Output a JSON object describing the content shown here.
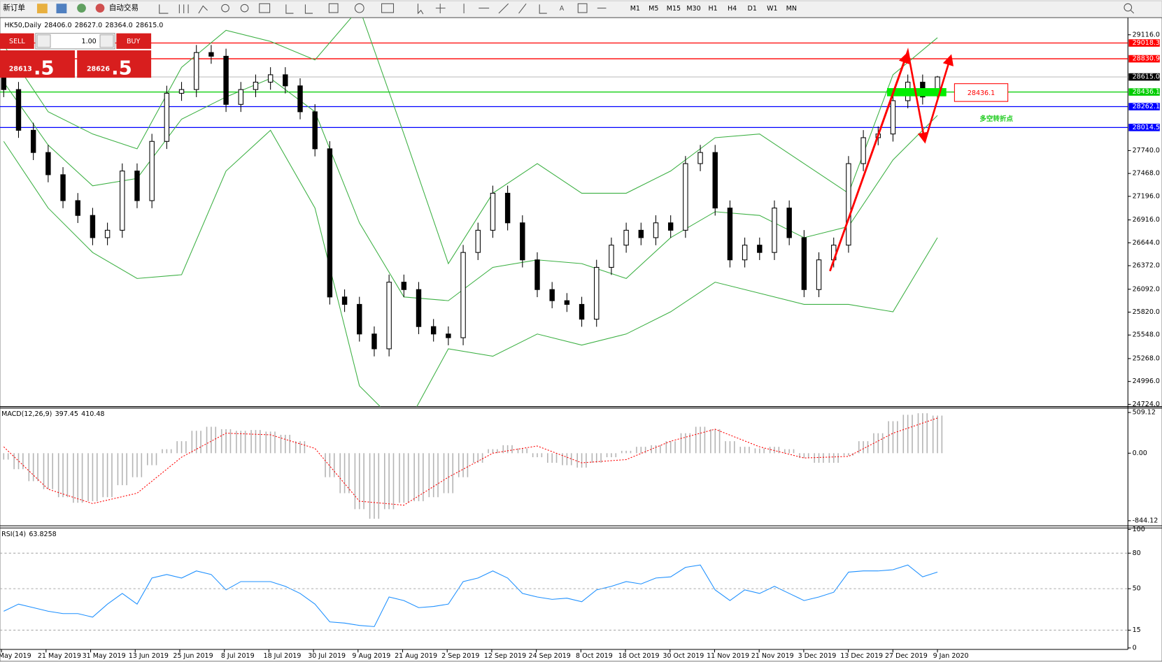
{
  "toolbar": {
    "new_order": "新订单",
    "auto_trade": "自动交易",
    "timeframes": [
      "M1",
      "M5",
      "M15",
      "M30",
      "H1",
      "H4",
      "D1",
      "W1",
      "MN"
    ]
  },
  "trade_panel": {
    "sell": "SELL",
    "buy": "BUY",
    "lots": "1.00",
    "sell_price": "28613",
    "sell_pips": ".5",
    "buy_price": "28626",
    "buy_pips": ".5"
  },
  "chart_data": [
    {
      "type": "candlestick",
      "title": "HK50,Daily",
      "header_values": [
        {
          "value": 28406,
          "label": "28406.0"
        },
        {
          "value": 28627,
          "label": "28627.0"
        },
        {
          "value": 28364,
          "label": "28364.0"
        },
        {
          "value": 28615,
          "label": "28615.0"
        }
      ],
      "open": [
        28700,
        28465,
        27981,
        27717,
        27453,
        27145,
        26969,
        26705,
        26793,
        27497,
        27145,
        27849,
        28421,
        28465,
        28905,
        28861,
        28289,
        28465,
        28553,
        28641,
        28509,
        28201,
        27761,
        26000,
        25912,
        25560,
        25384,
        26176,
        26088,
        25648,
        25560,
        25516,
        26529,
        26793,
        27233,
        26881,
        26441,
        26088,
        25956,
        25912,
        25736,
        26352,
        26616,
        26793,
        26705,
        26881,
        26793,
        27585,
        27717,
        27057,
        26441,
        26616,
        26529,
        27057,
        26705,
        26088,
        26441,
        26616,
        27585,
        27893,
        27937,
        28333,
        28553,
        28406
      ],
      "high": [
        28790,
        28555,
        28071,
        27807,
        27543,
        27235,
        27059,
        26883,
        27587,
        27587,
        27939,
        28511,
        28555,
        28995,
        28995,
        28951,
        28555,
        28643,
        28731,
        28731,
        28599,
        28291,
        27851,
        26090,
        26002,
        25650,
        26266,
        26266,
        26178,
        25738,
        25650,
        26619,
        26883,
        27323,
        27323,
        26971,
        26531,
        26178,
        26046,
        26002,
        26442,
        26706,
        26883,
        26883,
        26971,
        26971,
        27675,
        27807,
        27807,
        27147,
        26706,
        26706,
        27147,
        27147,
        26795,
        26531,
        26706,
        27675,
        27983,
        28027,
        28423,
        28643,
        28643,
        28627
      ],
      "low": [
        28375,
        27891,
        27627,
        27363,
        27055,
        26879,
        26615,
        26615,
        26703,
        27055,
        27055,
        27759,
        28331,
        28375,
        28771,
        28199,
        28199,
        28375,
        28463,
        28419,
        28111,
        27671,
        25910,
        25822,
        25470,
        25294,
        25294,
        25998,
        25558,
        25470,
        25426,
        25426,
        26439,
        26703,
        26791,
        26351,
        25998,
        25866,
        25822,
        25646,
        25646,
        26262,
        26526,
        26615,
        26615,
        26703,
        26703,
        27495,
        26967,
        26351,
        26351,
        26439,
        26439,
        26615,
        25998,
        25998,
        26351,
        26526,
        27495,
        27803,
        27847,
        28243,
        28287,
        28364
      ],
      "close": [
        28465,
        27981,
        27717,
        27453,
        27145,
        26969,
        26705,
        26793,
        27497,
        27145,
        27849,
        28421,
        28465,
        28905,
        28861,
        28289,
        28465,
        28553,
        28641,
        28509,
        28201,
        27761,
        26000,
        25912,
        25560,
        25384,
        26176,
        26088,
        25648,
        25560,
        25516,
        26529,
        26793,
        27233,
        26881,
        26441,
        26088,
        25956,
        25912,
        25736,
        26352,
        26616,
        26793,
        26705,
        26881,
        26793,
        27585,
        27717,
        27057,
        26441,
        26616,
        26529,
        27057,
        26705,
        26088,
        26441,
        26616,
        27585,
        27893,
        27937,
        28333,
        28553,
        28377,
        28615
      ],
      "bollinger": {
        "x": [
          0,
          3,
          6,
          9,
          12,
          15,
          18,
          21,
          24,
          27,
          30,
          33,
          36,
          39,
          42,
          45,
          48,
          51,
          54,
          57,
          60,
          63
        ],
        "color": "#3cb043",
        "upper": [
          28993,
          28201,
          27937,
          27761,
          28729,
          29169,
          29037,
          28817,
          29433,
          27937,
          26396,
          27233,
          27585,
          27233,
          27233,
          27497,
          27893,
          27937,
          27585,
          27233,
          28641,
          29081
        ],
        "middle": [
          28553,
          27805,
          27321,
          27409,
          28113,
          28377,
          28597,
          28201,
          26881,
          26000,
          25956,
          26352,
          26441,
          26396,
          26220,
          26705,
          27013,
          26969,
          26705,
          26837,
          27629,
          28157
        ],
        "lower": [
          27849,
          27057,
          26529,
          26220,
          26264,
          27497,
          27981,
          27057,
          24944,
          24416,
          25384,
          25296,
          25560,
          25428,
          25560,
          25824,
          26176,
          26044,
          25912,
          25912,
          25824,
          26705
        ]
      },
      "ylim": [
        24698,
        29327
      ],
      "yticks": [
        {
          "value": 29116,
          "label": "29116.0"
        },
        {
          "value": 27740,
          "label": "27740.0"
        },
        {
          "value": 27468,
          "label": "27468.0"
        },
        {
          "value": 27196,
          "label": "27196.0"
        },
        {
          "value": 26916,
          "label": "26916.0"
        },
        {
          "value": 26644,
          "label": "26644.0"
        },
        {
          "value": 26372,
          "label": "26372.0"
        },
        {
          "value": 26092,
          "label": "26092.0"
        },
        {
          "value": 25820,
          "label": "25820.0"
        },
        {
          "value": 25548,
          "label": "25548.0"
        },
        {
          "value": 25268,
          "label": "25268.0"
        },
        {
          "value": 24996,
          "label": "24996.0"
        },
        {
          "value": 24724,
          "label": "24724.0"
        }
      ],
      "levels": [
        {
          "value": 29018.3,
          "label": "29018.3",
          "color": "#ff0000"
        },
        {
          "value": 28830.9,
          "label": "28830.9",
          "color": "#ff0000"
        },
        {
          "value": 28436.1,
          "label": "28436.1",
          "color": "#00cc00"
        },
        {
          "value": 28262.1,
          "label": "28262.1",
          "color": "#0000ff"
        },
        {
          "value": 28014.5,
          "label": "28014.5",
          "color": "#0000ff"
        }
      ],
      "current": {
        "value": 28615,
        "label": "28615.0"
      },
      "annotation_value": {
        "value": 28436.1,
        "label": "28436.1"
      },
      "annotation_text": "多空转折点",
      "x_labels": [
        "May 2019",
        "21 May 2019",
        "31 May 2019",
        "13 Jun 2019",
        "25 Jun 2019",
        "8 Jul 2019",
        "18 Jul 2019",
        "30 Jul 2019",
        "9 Aug 2019",
        "21 Aug 2019",
        "2 Sep 2019",
        "12 Sep 2019",
        "24 Sep 2019",
        "8 Oct 2019",
        "18 Oct 2019",
        "30 Oct 2019",
        "11 Nov 2019",
        "21 Nov 2019",
        "3 Dec 2019",
        "13 Dec 2019",
        "27 Dec 2019",
        "9 Jan 2020"
      ]
    },
    {
      "type": "macd",
      "title": "MACD(12,26,9)",
      "title_values": [
        397.45,
        410.48
      ],
      "histogram": [
        -80,
        -200,
        -350,
        -450,
        -550,
        -620,
        -600,
        -550,
        -400,
        -300,
        -150,
        50,
        150,
        280,
        330,
        300,
        280,
        290,
        270,
        230,
        150,
        0,
        -300,
        -500,
        -700,
        -820,
        -700,
        -620,
        -600,
        -550,
        -500,
        -300,
        -120,
        50,
        100,
        60,
        -50,
        -120,
        -150,
        -180,
        -120,
        -50,
        30,
        80,
        100,
        150,
        250,
        330,
        300,
        150,
        80,
        60,
        80,
        50,
        -60,
        -120,
        -120,
        -30,
        150,
        250,
        400,
        480,
        500,
        470
      ],
      "histogram_color": "#b4b4b4",
      "signal": {
        "x": [
          0,
          3,
          6,
          9,
          12,
          15,
          18,
          21,
          24,
          27,
          30,
          33,
          36,
          39,
          42,
          45,
          48,
          51,
          54,
          57,
          60,
          63
        ],
        "values": [
          80,
          -450,
          -630,
          -500,
          -50,
          250,
          230,
          60,
          -600,
          -650,
          -300,
          0,
          90,
          -120,
          -80,
          150,
          300,
          80,
          -60,
          -40,
          250,
          440
        ],
        "color": "#ff0000"
      },
      "ylim": [
        -898,
        565
      ],
      "yticks": [
        509.12,
        {
          "value": 0,
          "label": "0.00"
        },
        -844.12
      ]
    },
    {
      "type": "line",
      "title": "RSI(14)",
      "title_value": 63.8258,
      "values": [
        31,
        37,
        34,
        31,
        29,
        29,
        26,
        37,
        46,
        37,
        59,
        62,
        59,
        65,
        62,
        49,
        56,
        56,
        56,
        52,
        46,
        37,
        22,
        21,
        19,
        18,
        43,
        40,
        34,
        35,
        37,
        56,
        59,
        65,
        59,
        46,
        43,
        41,
        42,
        39,
        49,
        52,
        56,
        54,
        59,
        60,
        68,
        70,
        49,
        40,
        49,
        46,
        52,
        46,
        40,
        43,
        47,
        64,
        65,
        65,
        66,
        70,
        60,
        64
      ],
      "color": "#1e90ff",
      "ylim": [
        0,
        100
      ],
      "yticks": [
        100,
        80,
        50,
        15,
        0
      ]
    }
  ]
}
